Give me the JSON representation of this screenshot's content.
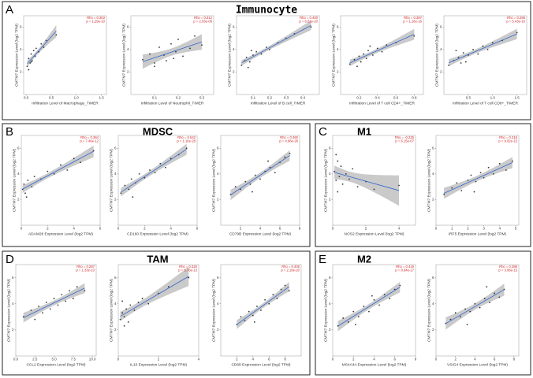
{
  "panels": [
    {
      "label": "A",
      "title": "Immunocyte"
    },
    {
      "label": "B",
      "title": "MDSC"
    },
    {
      "label": "C",
      "title": "M1"
    },
    {
      "label": "D",
      "title": "TAM"
    },
    {
      "label": "E",
      "title": "M2"
    }
  ],
  "chart_data": [
    {
      "type": "scatter",
      "xlabel": "Infiltration Level of Macrophage_TIMER",
      "ylabel": "CMTM7 Expression Level (log2 TPM)",
      "annotation": [
        "Rho = 0.303",
        "p = 1.29e-10"
      ],
      "xlim": [
        -0.05,
        1.6
      ],
      "xticks": [
        {
          "value": 0,
          "label": "0.0"
        },
        0.5,
        {
          "value": 1,
          "label": "1.0"
        },
        1.5
      ],
      "ylim": [
        0,
        7
      ],
      "yticks": [
        2,
        4,
        6
      ],
      "color": "#333333",
      "line_color": "#3366cc",
      "x": [
        0.02,
        0.05,
        0.08,
        0.1,
        0.12,
        0.15,
        0.18,
        0.2,
        0.25,
        0.3,
        0.35,
        0.05,
        0.1,
        0.4,
        0.6
      ],
      "y": [
        2.5,
        3.2,
        2.8,
        3.6,
        3.0,
        3.9,
        3.4,
        4.1,
        3.8,
        4.5,
        4.2,
        2.2,
        2.9,
        4.8,
        5.3
      ]
    },
    {
      "type": "scatter",
      "xlabel": "Infiltration Level of Neutrophil_TIMER",
      "ylabel": "CMTM7 Expression Level (log2 TPM)",
      "annotation": [
        "Rho = 0.312",
        "p = 2.03e-08"
      ],
      "xlim": [
        0,
        0.35
      ],
      "xticks": [
        0.1,
        0.2,
        0.3
      ],
      "ylim": [
        0,
        7
      ],
      "yticks": [
        2,
        4,
        6
      ],
      "color": "#333333",
      "line_color": "#3366cc",
      "x": [
        0.05,
        0.08,
        0.1,
        0.12,
        0.14,
        0.15,
        0.17,
        0.19,
        0.2,
        0.22,
        0.25,
        0.27,
        0.3,
        0.1,
        0.18
      ],
      "y": [
        3.1,
        3.6,
        2.8,
        4.2,
        3.5,
        3.0,
        4.5,
        3.8,
        4.9,
        3.4,
        4.1,
        5.2,
        4.4,
        2.5,
        3.2
      ]
    },
    {
      "type": "scatter",
      "xlabel": "Infiltration Level of B cell_TIMER",
      "ylabel": "CMTM7 Expression Level (log2 TPM)",
      "annotation": [
        "Rho = 0.400",
        "p = 6.61e-20"
      ],
      "xlim": [
        0,
        0.5
      ],
      "xticks": [
        0.1,
        0.2,
        0.3,
        0.4
      ],
      "ylim": [
        0,
        7
      ],
      "yticks": [
        2,
        4,
        6
      ],
      "color": "#333333",
      "line_color": "#3366cc",
      "x": [
        0.03,
        0.05,
        0.06,
        0.08,
        0.1,
        0.12,
        0.15,
        0.18,
        0.2,
        0.25,
        0.3,
        0.35,
        0.07,
        0.09,
        0.45
      ],
      "y": [
        2.6,
        3.0,
        3.3,
        2.9,
        3.5,
        3.8,
        3.6,
        4.2,
        4.0,
        4.6,
        5.0,
        5.4,
        2.4,
        3.9,
        6.0
      ]
    },
    {
      "type": "scatter",
      "xlabel": "Infiltration Level of T cell CD4+_TIMER",
      "ylabel": "CMTM7 Expression Level (log2 TPM)",
      "annotation": [
        "Rho = 0.367",
        "p = 1.16e-16"
      ],
      "xlim": [
        0,
        0.9
      ],
      "xticks": [
        0.2,
        0.4,
        0.6,
        0.8
      ],
      "ylim": [
        0,
        7
      ],
      "yticks": [
        2,
        4,
        6
      ],
      "color": "#333333",
      "line_color": "#3366cc",
      "x": [
        0.1,
        0.15,
        0.2,
        0.22,
        0.25,
        0.28,
        0.3,
        0.35,
        0.4,
        0.45,
        0.5,
        0.6,
        0.8,
        0.18,
        0.32
      ],
      "y": [
        2.7,
        3.1,
        3.4,
        2.9,
        3.6,
        3.2,
        3.9,
        3.5,
        4.1,
        3.8,
        4.4,
        4.6,
        5.2,
        2.5,
        4.3
      ]
    },
    {
      "type": "scatter",
      "xlabel": "Infiltration Level of T cell CD8+_TIMER",
      "ylabel": "CMTM7 Expression Level (log2 TPM)",
      "annotation": [
        "Rho = 0.285",
        "p = 5.43e-10"
      ],
      "xlim": [
        0,
        1.7
      ],
      "xticks": [
        0.5,
        {
          "value": 1,
          "label": "1.0"
        },
        1.5
      ],
      "ylim": [
        0,
        7
      ],
      "yticks": [
        2,
        4,
        6
      ],
      "color": "#333333",
      "line_color": "#3366cc",
      "x": [
        0.1,
        0.2,
        0.3,
        0.35,
        0.4,
        0.5,
        0.6,
        0.7,
        0.8,
        0.9,
        1.0,
        1.2,
        1.5,
        0.25,
        0.45
      ],
      "y": [
        2.6,
        3.0,
        3.3,
        2.8,
        3.7,
        3.5,
        4.0,
        3.6,
        4.3,
        4.0,
        4.6,
        4.8,
        5.5,
        3.9,
        2.9
      ]
    },
    {
      "type": "scatter",
      "xlabel": "ADAM28 Expression Level (log2 TPM)",
      "ylabel": "CMTM7 Expression Level (log2 TPM)",
      "annotation": [
        "Rho = 0.364",
        "p = 7.46e-12"
      ],
      "xlim": [
        0,
        6
      ],
      "xticks": [
        0,
        2,
        4,
        6
      ],
      "ylim": [
        0,
        7
      ],
      "yticks": [
        2,
        4,
        6
      ],
      "color": "#333333",
      "line_color": "#3366cc",
      "x": [
        0.1,
        0.2,
        0.3,
        0.5,
        0.8,
        1.0,
        1.5,
        2.0,
        2.5,
        3.0,
        3.5,
        4.0,
        4.5,
        0.4,
        5.5
      ],
      "y": [
        2.8,
        3.2,
        2.5,
        3.5,
        3.0,
        3.8,
        3.6,
        4.2,
        4.0,
        4.7,
        4.3,
        5.2,
        4.9,
        2.2,
        5.8
      ]
    },
    {
      "type": "scatter",
      "xlabel": "CD160 Expression Level (log2 TPM)",
      "ylabel": "CMTM7 Expression Level (log2 TPM)",
      "annotation": [
        "Rho = 0.542",
        "p = 1.16e-28"
      ],
      "xlim": [
        0,
        6
      ],
      "xticks": [
        0,
        2,
        4,
        6
      ],
      "ylim": [
        0,
        7
      ],
      "yticks": [
        2,
        4,
        6
      ],
      "color": "#333333",
      "line_color": "#3366cc",
      "x": [
        0.2,
        0.5,
        0.8,
        1.0,
        1.3,
        1.6,
        2.0,
        2.4,
        2.8,
        3.2,
        3.6,
        4.0,
        4.6,
        1.1,
        5.2
      ],
      "y": [
        2.5,
        3.1,
        2.8,
        3.6,
        3.3,
        4.0,
        3.7,
        4.3,
        4.1,
        4.8,
        4.5,
        5.2,
        5.5,
        2.2,
        6.0
      ]
    },
    {
      "type": "scatter",
      "xlabel": "CD79B Expression Level (log2 TPM)",
      "ylabel": "CMTM7 Expression Level (log2 TPM)",
      "annotation": [
        "Rho = 0.460",
        "p = 4.88e-28"
      ],
      "xlim": [
        0,
        8
      ],
      "xticks": [
        2,
        4,
        6,
        8
      ],
      "ylim": [
        0,
        7
      ],
      "yticks": [
        2,
        4,
        6
      ],
      "color": "#333333",
      "line_color": "#3366cc",
      "x": [
        1.0,
        1.5,
        2.0,
        2.5,
        3.0,
        3.5,
        4.0,
        4.5,
        5.0,
        5.5,
        6.0,
        6.5,
        3.2,
        4.8,
        7.0
      ],
      "y": [
        2.4,
        3.0,
        2.8,
        3.4,
        3.2,
        3.9,
        3.6,
        4.2,
        4.5,
        4.1,
        4.9,
        5.3,
        2.6,
        5.0,
        5.6
      ]
    },
    {
      "type": "scatter",
      "xlabel": "NOS2 Expression Level (log2 TPM)",
      "ylabel": "CMTM7 Expression Level (log2 TPM)",
      "annotation": [
        "Rho = -0.225",
        "p = 6.15e-07"
      ],
      "xlim": [
        0,
        5
      ],
      "xticks": [
        0,
        2,
        4
      ],
      "ylim": [
        0,
        7
      ],
      "yticks": [
        2,
        4,
        6
      ],
      "color": "#333333",
      "line_color": "#3366cc",
      "x": [
        0.1,
        0.2,
        0.3,
        0.4,
        0.5,
        0.6,
        0.8,
        1.0,
        1.2,
        1.5,
        2.0,
        2.5,
        0.2,
        0.3,
        4.0
      ],
      "y": [
        4.2,
        3.5,
        5.0,
        3.8,
        4.6,
        3.2,
        4.0,
        3.6,
        4.4,
        3.0,
        3.4,
        2.8,
        5.5,
        2.6,
        3.1
      ]
    },
    {
      "type": "scatter",
      "xlabel": "IRF5 Expression Level (log2 TPM)",
      "ylabel": "CMTM7 Expression Level (log2 TPM)",
      "annotation": [
        "Rho = 0.316",
        "p = 9.02e-15"
      ],
      "xlim": [
        0,
        5.2
      ],
      "xticks": [
        0,
        1,
        2,
        3,
        4,
        5
      ],
      "ylim": [
        0,
        7
      ],
      "yticks": [
        2,
        4,
        6
      ],
      "color": "#333333",
      "line_color": "#3366cc",
      "x": [
        0.5,
        1.0,
        1.3,
        1.6,
        2.0,
        2.2,
        2.5,
        2.8,
        3.0,
        3.3,
        3.6,
        4.0,
        4.4,
        2.4,
        4.8
      ],
      "y": [
        2.4,
        2.9,
        3.3,
        2.7,
        3.5,
        3.9,
        3.4,
        4.1,
        3.7,
        4.5,
        4.0,
        4.8,
        4.3,
        2.6,
        5.0
      ]
    },
    {
      "type": "scatter",
      "xlabel": "CCL2 Expression Level (log2 TPM)",
      "ylabel": "CMTM7 Expression Level (log2 TPM)",
      "annotation": [
        "Rho = 0.287",
        "p = 1.33e-10"
      ],
      "xlim": [
        0,
        10.5
      ],
      "xticks": [
        {
          "value": 0,
          "label": "0.0"
        },
        2.5,
        {
          "value": 5,
          "label": "5.0"
        },
        7.5,
        {
          "value": 10,
          "label": "10.0"
        }
      ],
      "ylim": [
        0,
        7
      ],
      "yticks": [
        2,
        4,
        6
      ],
      "color": "#333333",
      "line_color": "#3366cc",
      "x": [
        1.0,
        2.0,
        2.5,
        3.0,
        3.5,
        4.0,
        4.5,
        5.0,
        5.5,
        6.0,
        6.5,
        7.0,
        7.5,
        8.0,
        9.0
      ],
      "y": [
        3.0,
        3.5,
        2.8,
        3.8,
        3.3,
        4.1,
        3.6,
        4.4,
        3.9,
        4.7,
        4.2,
        5.0,
        4.4,
        5.3,
        5.0
      ]
    },
    {
      "type": "scatter",
      "xlabel": "IL10 Expression Level (log2 TPM)",
      "ylabel": "CMTM7 Expression Level (log2 TPM)",
      "annotation": [
        "Rho = 0.320",
        "p = 5.76e-13"
      ],
      "xlim": [
        0,
        4
      ],
      "xticks": [
        0,
        2,
        4
      ],
      "ylim": [
        0,
        7
      ],
      "yticks": [
        2,
        4,
        6
      ],
      "color": "#333333",
      "line_color": "#3366cc",
      "x": [
        0.1,
        0.2,
        0.3,
        0.4,
        0.5,
        0.6,
        0.8,
        1.0,
        1.2,
        1.5,
        2.0,
        2.5,
        0.3,
        0.2,
        3.5
      ],
      "y": [
        2.8,
        3.3,
        3.0,
        3.6,
        2.6,
        3.9,
        3.5,
        4.1,
        4.4,
        4.0,
        4.8,
        5.3,
        2.3,
        4.2,
        6.0
      ]
    },
    {
      "type": "scatter",
      "xlabel": "CD68 Expression Level (log2 TPM)",
      "ylabel": "CMTM7 Expression Level (log2 TPM)",
      "annotation": [
        "Rho = 0.405",
        "p = 2.18e-20"
      ],
      "xlim": [
        0,
        10
      ],
      "xticks": [
        2,
        4,
        6,
        8
      ],
      "ylim": [
        0,
        7
      ],
      "yticks": [
        2,
        4,
        6
      ],
      "color": "#333333",
      "line_color": "#3366cc",
      "x": [
        2.0,
        2.5,
        3.0,
        3.5,
        4.0,
        4.5,
        5.0,
        5.5,
        6.0,
        6.5,
        7.0,
        7.5,
        8.0,
        4.2,
        8.5
      ],
      "y": [
        2.4,
        3.0,
        2.7,
        3.4,
        3.1,
        3.8,
        3.5,
        4.3,
        4.0,
        4.7,
        4.4,
        5.1,
        5.4,
        2.6,
        5.0
      ]
    },
    {
      "type": "scatter",
      "xlabel": "MS4A4A Expression Level (log2 TPM)",
      "ylabel": "CMTM7 Expression Level (log2 TPM)",
      "annotation": [
        "Rho = 0.419",
        "p = 8.84e-17"
      ],
      "xlim": [
        0,
        8
      ],
      "xticks": [
        0,
        2,
        4,
        6,
        8
      ],
      "ylim": [
        0,
        7
      ],
      "yticks": [
        2,
        4,
        6
      ],
      "color": "#333333",
      "line_color": "#3366cc",
      "x": [
        0.5,
        1.0,
        1.5,
        2.0,
        2.5,
        3.0,
        3.5,
        4.0,
        4.5,
        5.0,
        5.5,
        6.0,
        2.2,
        3.8,
        6.5
      ],
      "y": [
        2.3,
        2.9,
        2.6,
        3.4,
        3.0,
        3.8,
        3.4,
        4.3,
        3.9,
        4.7,
        4.4,
        5.1,
        2.4,
        4.6,
        5.4
      ]
    },
    {
      "type": "scatter",
      "xlabel": "VSIG4 Expression Level (log2 TPM)",
      "ylabel": "CMTM7 Expression Level (log2 TPM)",
      "annotation": [
        "Rho = 0.388",
        "p = 3.08e-15"
      ],
      "xlim": [
        0,
        8.5
      ],
      "xticks": [
        0,
        2,
        4,
        6,
        8
      ],
      "ylim": [
        0,
        7
      ],
      "yticks": [
        2,
        4,
        6
      ],
      "color": "#333333",
      "line_color": "#3366cc",
      "x": [
        1.0,
        1.5,
        2.0,
        2.5,
        3.0,
        3.5,
        4.0,
        4.5,
        5.0,
        5.5,
        6.0,
        6.5,
        7.0,
        3.2,
        5.2
      ],
      "y": [
        2.5,
        2.8,
        3.3,
        3.0,
        3.6,
        3.4,
        4.0,
        3.7,
        4.4,
        4.1,
        4.8,
        4.5,
        5.1,
        2.4,
        5.3
      ]
    }
  ]
}
